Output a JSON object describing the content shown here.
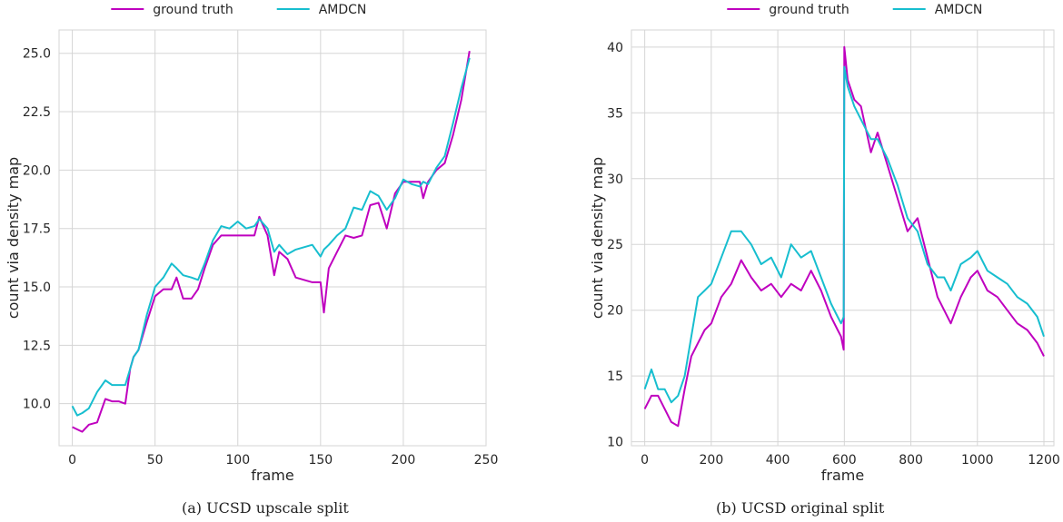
{
  "chart_data": [
    {
      "type": "line",
      "caption": "(a) UCSD upscale split",
      "xlabel": "frame",
      "ylabel": "count via density map",
      "xlim": [
        -8,
        250
      ],
      "ylim": [
        8.2,
        26.0
      ],
      "xticks": [
        0,
        50,
        100,
        150,
        200,
        250
      ],
      "yticks": [
        10.0,
        12.5,
        15.0,
        17.5,
        20.0,
        22.5,
        25.0
      ],
      "ytick_labels": [
        "10.0",
        "12.5",
        "15.0",
        "17.5",
        "20.0",
        "22.5",
        "25.0"
      ],
      "grid": true,
      "legend_position": "top-center",
      "series": [
        {
          "name": "ground truth",
          "color": "#bf00bf",
          "x": [
            0,
            3,
            6,
            10,
            15,
            20,
            24,
            28,
            32,
            35,
            37,
            40,
            45,
            50,
            55,
            60,
            63,
            67,
            72,
            76,
            80,
            85,
            90,
            95,
            100,
            105,
            110,
            113,
            118,
            122,
            125,
            130,
            135,
            140,
            145,
            150,
            152,
            155,
            160,
            165,
            170,
            175,
            180,
            185,
            190,
            195,
            200,
            205,
            210,
            212,
            215,
            220,
            225,
            230,
            235,
            240
          ],
          "y": [
            9.0,
            8.9,
            8.8,
            9.1,
            9.2,
            10.2,
            10.1,
            10.1,
            10.0,
            11.5,
            12.0,
            12.3,
            13.5,
            14.6,
            14.9,
            14.9,
            15.4,
            14.5,
            14.5,
            14.9,
            15.8,
            16.8,
            17.2,
            17.2,
            17.2,
            17.2,
            17.2,
            18.0,
            17.2,
            15.5,
            16.5,
            16.2,
            15.4,
            15.3,
            15.2,
            15.2,
            13.9,
            15.8,
            16.5,
            17.2,
            17.1,
            17.2,
            18.5,
            18.6,
            17.5,
            19.0,
            19.5,
            19.5,
            19.5,
            18.8,
            19.5,
            20.0,
            20.3,
            21.5,
            23.0,
            25.1
          ]
        },
        {
          "name": "AMDCN",
          "color": "#17becf",
          "x": [
            0,
            3,
            6,
            10,
            15,
            20,
            24,
            28,
            32,
            35,
            37,
            40,
            45,
            50,
            55,
            60,
            63,
            67,
            72,
            76,
            80,
            85,
            90,
            95,
            100,
            105,
            110,
            113,
            118,
            122,
            125,
            130,
            135,
            140,
            145,
            150,
            152,
            155,
            160,
            165,
            170,
            175,
            180,
            185,
            190,
            195,
            200,
            205,
            210,
            212,
            215,
            220,
            225,
            230,
            235,
            240
          ],
          "y": [
            9.9,
            9.5,
            9.6,
            9.8,
            10.5,
            11.0,
            10.8,
            10.8,
            10.8,
            11.5,
            12.0,
            12.3,
            13.8,
            15.0,
            15.4,
            16.0,
            15.8,
            15.5,
            15.4,
            15.3,
            16.0,
            17.0,
            17.6,
            17.5,
            17.8,
            17.5,
            17.6,
            17.9,
            17.5,
            16.5,
            16.8,
            16.4,
            16.6,
            16.7,
            16.8,
            16.3,
            16.6,
            16.8,
            17.2,
            17.5,
            18.4,
            18.3,
            19.1,
            18.9,
            18.3,
            18.8,
            19.6,
            19.4,
            19.3,
            19.5,
            19.4,
            20.1,
            20.6,
            22.0,
            23.5,
            24.8
          ]
        }
      ]
    },
    {
      "type": "line",
      "caption": "(b) UCSD original split",
      "xlabel": "frame",
      "ylabel": "count via density map",
      "xlim": [
        -40,
        1230
      ],
      "ylim": [
        9.7,
        41.3
      ],
      "xticks": [
        0,
        200,
        400,
        600,
        800,
        1000,
        1200
      ],
      "yticks": [
        10,
        15,
        20,
        25,
        30,
        35,
        40
      ],
      "ytick_labels": [
        "10",
        "15",
        "20",
        "25",
        "30",
        "35",
        "40"
      ],
      "grid": true,
      "legend_position": "top-center",
      "series": [
        {
          "name": "ground truth",
          "color": "#bf00bf",
          "x": [
            0,
            20,
            40,
            60,
            80,
            100,
            120,
            140,
            160,
            180,
            200,
            230,
            260,
            290,
            320,
            350,
            380,
            410,
            440,
            470,
            500,
            530,
            560,
            580,
            590,
            598,
            600,
            610,
            630,
            650,
            680,
            700,
            730,
            760,
            790,
            820,
            850,
            880,
            900,
            920,
            950,
            980,
            1000,
            1030,
            1060,
            1090,
            1120,
            1150,
            1180,
            1200
          ],
          "y": [
            12.5,
            13.5,
            13.5,
            12.5,
            11.5,
            11.2,
            14.0,
            16.5,
            17.5,
            18.5,
            19.0,
            21.0,
            22.0,
            23.8,
            22.5,
            21.5,
            22.0,
            21.0,
            22.0,
            21.5,
            23.0,
            21.5,
            19.5,
            18.5,
            18.0,
            17.0,
            40.0,
            37.5,
            36.0,
            35.5,
            32.0,
            33.5,
            31.0,
            28.5,
            26.0,
            27.0,
            24.0,
            21.0,
            20.0,
            19.0,
            21.0,
            22.5,
            23.0,
            21.5,
            21.0,
            20.0,
            19.0,
            18.5,
            17.5,
            16.5
          ]
        },
        {
          "name": "AMDCN",
          "color": "#17becf",
          "x": [
            0,
            20,
            40,
            60,
            80,
            100,
            120,
            140,
            160,
            180,
            200,
            230,
            260,
            290,
            320,
            350,
            380,
            410,
            440,
            470,
            500,
            530,
            560,
            580,
            590,
            598,
            600,
            610,
            630,
            650,
            680,
            700,
            730,
            760,
            790,
            820,
            850,
            880,
            900,
            920,
            950,
            980,
            1000,
            1030,
            1060,
            1090,
            1120,
            1150,
            1180,
            1200
          ],
          "y": [
            14.0,
            15.5,
            14.0,
            14.0,
            13.0,
            13.5,
            15.0,
            18.0,
            21.0,
            21.5,
            22.0,
            24.0,
            26.0,
            26.0,
            25.0,
            23.5,
            24.0,
            22.5,
            25.0,
            24.0,
            24.5,
            22.5,
            20.5,
            19.5,
            19.0,
            19.5,
            38.5,
            37.0,
            35.5,
            34.5,
            33.0,
            33.0,
            31.5,
            29.5,
            27.0,
            26.0,
            23.5,
            22.5,
            22.5,
            21.5,
            23.5,
            24.0,
            24.5,
            23.0,
            22.5,
            22.0,
            21.0,
            20.5,
            19.5,
            18.0
          ]
        }
      ]
    }
  ],
  "colors": {
    "ground_truth": "#bf00bf",
    "amdcn": "#17becf",
    "grid": "#d5d5d5"
  }
}
